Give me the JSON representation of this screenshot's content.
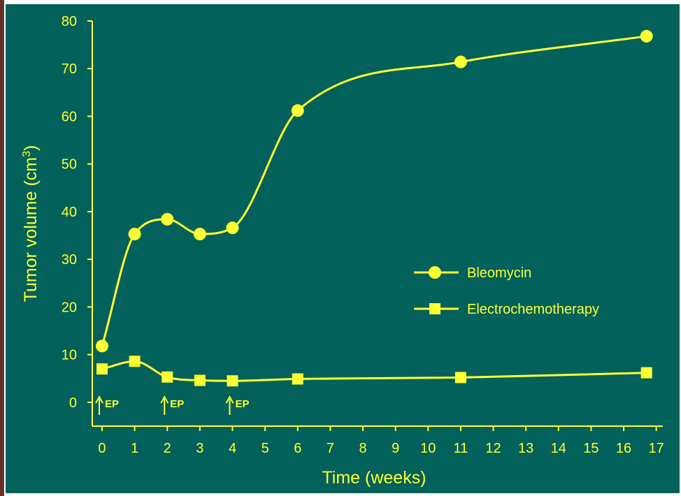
{
  "chart_data": {
    "type": "line",
    "title": "",
    "xlabel": "Time (weeks)",
    "ylabel_text": "Tumor volume (cm",
    "ylabel_sup": "3",
    "ylabel_close": ")",
    "xlim": [
      -0.3,
      17.2
    ],
    "ylim": [
      -5,
      80
    ],
    "x_ticks": [
      0,
      1,
      2,
      3,
      4,
      5,
      6,
      7,
      8,
      9,
      10,
      11,
      12,
      13,
      14,
      15,
      16,
      17
    ],
    "y_ticks": [
      0,
      10,
      20,
      30,
      40,
      50,
      60,
      70,
      80
    ],
    "legend_position": "center-right",
    "grid": false,
    "colors": {
      "background": "#02615a",
      "foreground": "#ffff33"
    },
    "series": [
      {
        "name": "Bleomycin",
        "marker": "circle",
        "x": [
          0,
          1,
          2,
          3,
          4,
          6,
          11,
          16.7
        ],
        "y": [
          11.8,
          35.3,
          38.4,
          35.3,
          36.6,
          61.2,
          71.4,
          76.8
        ]
      },
      {
        "name": "Electrochemotherapy",
        "marker": "square",
        "x": [
          0,
          1,
          2,
          3,
          4,
          6,
          11,
          16.7
        ],
        "y": [
          7.0,
          8.6,
          5.3,
          4.6,
          4.5,
          4.9,
          5.2,
          6.2
        ]
      }
    ],
    "annotations": [
      {
        "text": "EP",
        "x": 0
      },
      {
        "text": "EP",
        "x": 2
      },
      {
        "text": "EP",
        "x": 4
      }
    ]
  }
}
